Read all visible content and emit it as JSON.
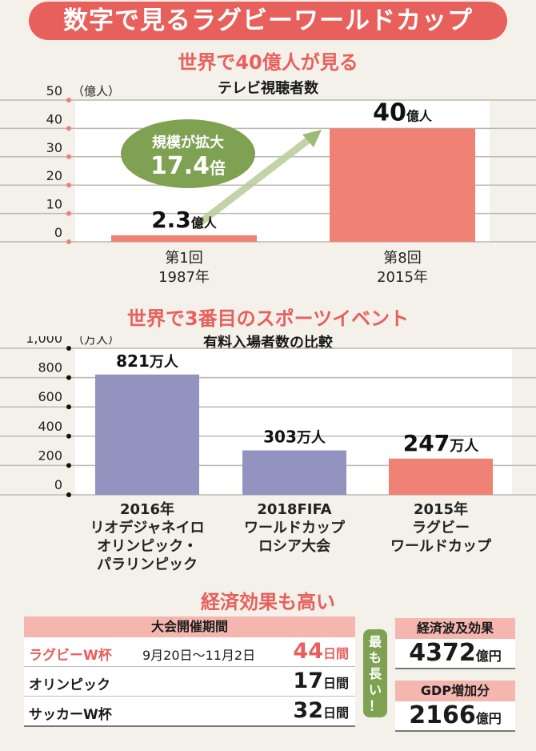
{
  "banner": {
    "title": "数字で見るラグビーワールドカップ"
  },
  "section1": {
    "title": "世界で40億人が見る",
    "subtitle": "テレビ視聴者数",
    "callout": {
      "line1": "規模が拡大",
      "value": "17.4",
      "unit": "倍"
    }
  },
  "section2": {
    "title": "世界で3番目のスポーツイベント",
    "subtitle": "有料入場者数の比較"
  },
  "section3": {
    "title": "経済効果も高い",
    "table": {
      "header": "大会開催期間",
      "rows": [
        {
          "name": "ラグビーW杯",
          "range": "9月20日〜11月2日",
          "days": "44",
          "unit": "日間",
          "highlight": true
        },
        {
          "name": "オリンピック",
          "range": "",
          "days": "17",
          "unit": "日間",
          "highlight": false
        },
        {
          "name": "サッカーW杯",
          "range": "",
          "days": "32",
          "unit": "日間",
          "highlight": false
        }
      ]
    },
    "badge": [
      "最",
      "も",
      "長",
      "い",
      "！"
    ],
    "boxes": [
      {
        "label": "経済波及効果",
        "value": "4372",
        "unit": "億円"
      },
      {
        "label": "GDP増加分",
        "value": "2166",
        "unit": "億円"
      }
    ]
  },
  "chart_data": [
    {
      "type": "bar",
      "title": "世界で40億人が見る",
      "subtitle": "テレビ視聴者数",
      "ylabel": "（億人）",
      "ylim": [
        0,
        50
      ],
      "yticks": [
        "0",
        "10",
        "20",
        "30",
        "40",
        "50"
      ],
      "yticks_values": [
        0,
        10,
        20,
        30,
        40,
        50
      ],
      "grid": true,
      "categories": [
        [
          "第1回",
          "1987年"
        ],
        [
          "第8回",
          "2015年"
        ]
      ],
      "values": [
        2.3,
        40
      ],
      "data_labels": [
        {
          "num": "2.3",
          "unit": "億人"
        },
        {
          "num": "40",
          "unit": "億人"
        }
      ],
      "colors": [
        "#ef8274",
        "#ef8274"
      ],
      "accent_color": "#7ea152"
    },
    {
      "type": "bar",
      "title": "世界で3番目のスポーツイベント",
      "subtitle": "有料入場者数の比較",
      "ylabel": "（万人）",
      "ylim": [
        0,
        1000
      ],
      "yticks": [
        "0",
        "200",
        "400",
        "600",
        "800",
        "1,000"
      ],
      "yticks_values": [
        0,
        200,
        400,
        600,
        800,
        1000
      ],
      "grid": true,
      "categories": [
        [
          "2016年",
          "リオデジャネイロ",
          "オリンピック・",
          "パラリンピック"
        ],
        [
          "2018FIFA",
          "ワールドカップ",
          "ロシア大会"
        ],
        [
          "2015年",
          "ラグビー",
          "ワールドカップ"
        ]
      ],
      "values": [
        821,
        303,
        247
      ],
      "data_labels": [
        {
          "num": "821",
          "unit": "万人"
        },
        {
          "num": "303",
          "unit": "万人"
        },
        {
          "num": "247",
          "unit": "万人"
        }
      ],
      "colors": [
        "#9293bf",
        "#9293bf",
        "#ef8274"
      ]
    }
  ]
}
